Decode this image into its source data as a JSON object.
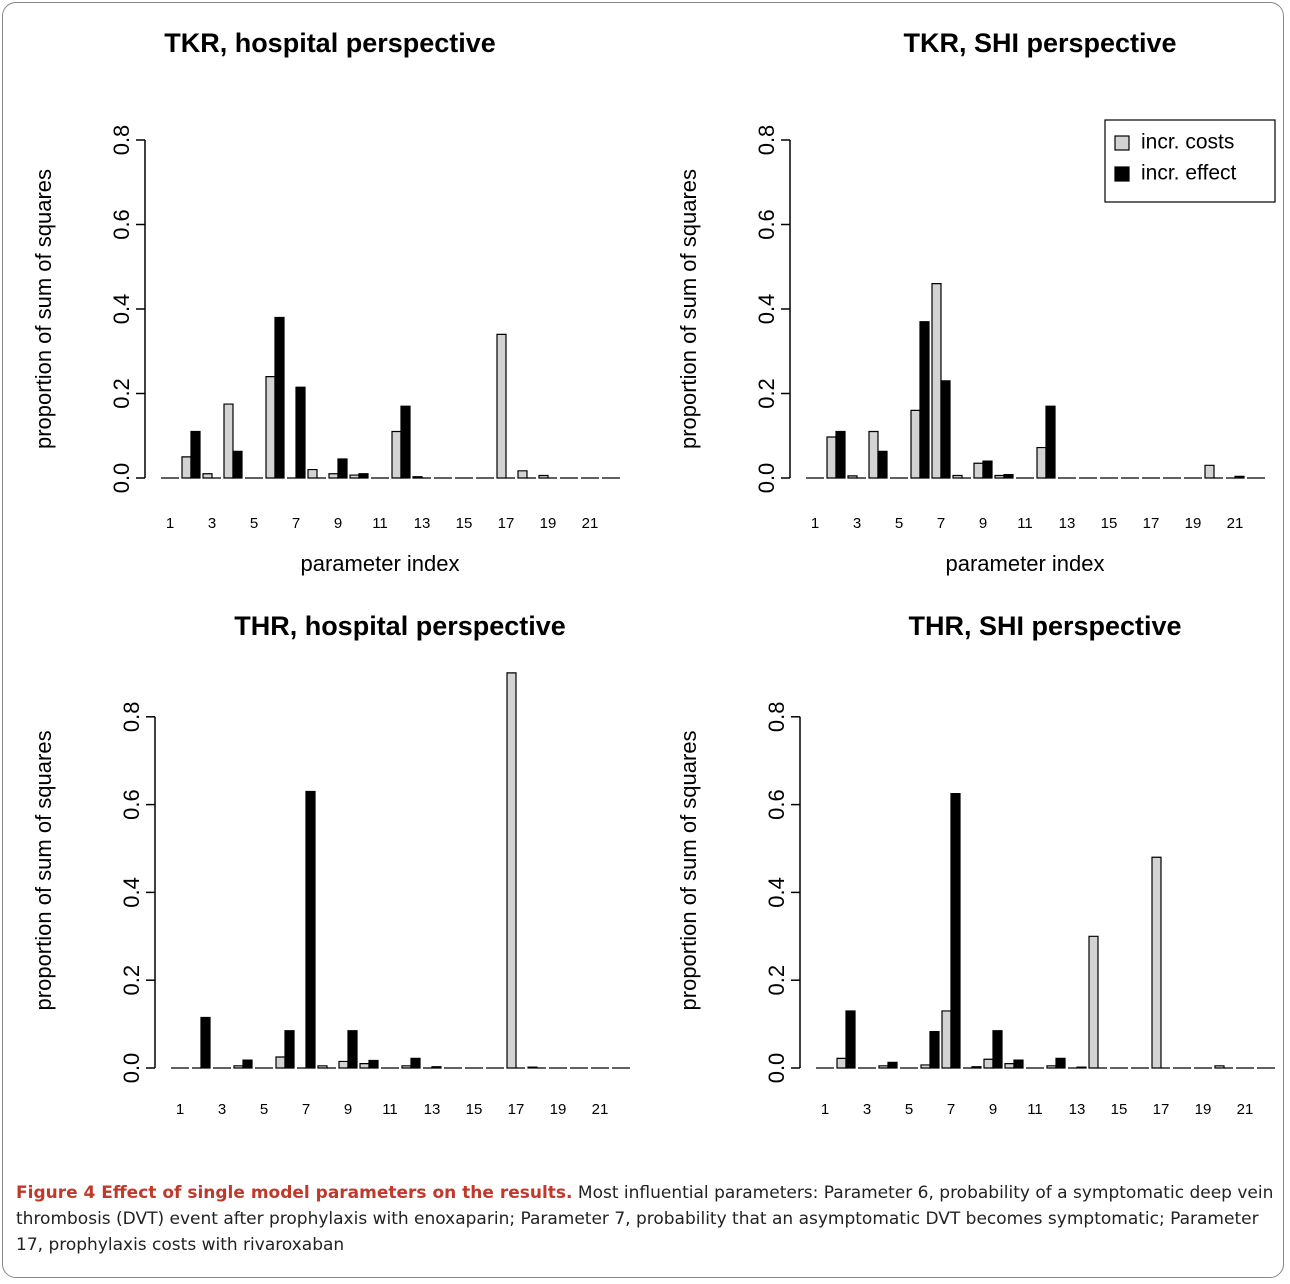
{
  "chart_data": [
    {
      "type": "bar",
      "title": "TKR, hospital perspective",
      "xlabel": "parameter index",
      "ylabel": "proportion of sum of squares",
      "categories": [
        1,
        null,
        3,
        null,
        5,
        null,
        7,
        null,
        9,
        null,
        11,
        null,
        13,
        null,
        15,
        null,
        17,
        null,
        19,
        null,
        21,
        null
      ],
      "series": [
        {
          "color": "#d3d3d3",
          "values": [
            0,
            0.05,
            0.01,
            0.175,
            0,
            0.24,
            0,
            0.02,
            0.01,
            0.007,
            0,
            0.11,
            0.003,
            0,
            0,
            0,
            0.34,
            0.017,
            0.006,
            0,
            0,
            0
          ]
        },
        {
          "color": "#000000",
          "values": [
            0,
            0.11,
            0,
            0.063,
            0,
            0.38,
            0.215,
            0,
            0.045,
            0.01,
            0,
            0.17,
            0,
            0,
            0,
            0,
            0,
            0,
            0,
            0,
            0,
            0
          ]
        }
      ],
      "ylim": [
        0,
        0.8
      ],
      "yticks": [
        {
          "value": 0,
          "label": "0.0"
        },
        0.2,
        0.4,
        0.6,
        0.8
      ]
    },
    {
      "type": "bar",
      "title": "TKR, SHI perspective",
      "xlabel": "parameter index",
      "ylabel": "proportion of sum of squares",
      "categories": [
        1,
        null,
        3,
        null,
        5,
        null,
        7,
        null,
        9,
        null,
        11,
        null,
        13,
        null,
        15,
        null,
        17,
        null,
        19,
        null,
        21,
        null
      ],
      "series": [
        {
          "name": "incr. costs",
          "color": "#d3d3d3",
          "values": [
            0,
            0.097,
            0.005,
            0.11,
            0,
            0.16,
            0.46,
            0.006,
            0.035,
            0.006,
            0,
            0.072,
            0,
            0,
            0,
            0,
            0,
            0,
            0,
            0.03,
            0,
            0
          ]
        },
        {
          "name": "incr. effect",
          "color": "#000000",
          "values": [
            0,
            0.11,
            0,
            0.063,
            0,
            0.37,
            0.23,
            0,
            0.04,
            0.008,
            0,
            0.17,
            0,
            0,
            0,
            0,
            0,
            0,
            0,
            0,
            0.004,
            0
          ]
        }
      ],
      "legend": "topright",
      "ylim": [
        0,
        0.8
      ],
      "yticks": [
        {
          "value": 0,
          "label": "0.0"
        },
        0.2,
        0.4,
        0.6,
        0.8
      ]
    },
    {
      "type": "bar",
      "title": "THR, hospital perspective",
      "xlabel": "parameter index",
      "ylabel": "proportion of sum of squares",
      "categories": [
        1,
        null,
        3,
        null,
        5,
        null,
        7,
        null,
        9,
        null,
        11,
        null,
        13,
        null,
        15,
        null,
        17,
        null,
        19,
        null,
        21,
        null
      ],
      "series": [
        {
          "color": "#d3d3d3",
          "values": [
            0,
            0,
            0,
            0.005,
            0,
            0.025,
            0,
            0.005,
            0.015,
            0.01,
            0,
            0.005,
            0,
            0,
            0,
            0,
            0.9,
            0.002,
            0,
            0,
            0,
            0
          ]
        },
        {
          "color": "#000000",
          "values": [
            0,
            0.115,
            0,
            0.018,
            0,
            0.085,
            0.63,
            0,
            0.085,
            0.017,
            0,
            0.022,
            0.003,
            0,
            0,
            0,
            0,
            0,
            0,
            0,
            0,
            0
          ]
        }
      ],
      "ylim": [
        0,
        0.9
      ],
      "yticks": [
        {
          "value": 0,
          "label": "0.0"
        },
        0.2,
        0.4,
        0.6,
        0.8
      ]
    },
    {
      "type": "bar",
      "title": "THR, SHI perspective",
      "xlabel": "parameter index",
      "ylabel": "proportion of sum of squares",
      "categories": [
        1,
        null,
        3,
        null,
        5,
        null,
        7,
        null,
        9,
        null,
        11,
        null,
        13,
        null,
        15,
        null,
        17,
        null,
        19,
        null,
        21,
        null
      ],
      "series": [
        {
          "color": "#d3d3d3",
          "values": [
            0,
            0.022,
            0,
            0.005,
            0,
            0.007,
            0.13,
            0,
            0.02,
            0.01,
            0,
            0.005,
            0,
            0.3,
            0,
            0,
            0.48,
            0,
            0,
            0.005,
            0,
            0
          ]
        },
        {
          "color": "#000000",
          "values": [
            0,
            0.13,
            0,
            0.013,
            0,
            0.083,
            0.625,
            0.003,
            0.085,
            0.018,
            0,
            0.022,
            0.002,
            0,
            0,
            0,
            0,
            0,
            0,
            0,
            0,
            0
          ]
        }
      ],
      "ylim": [
        0,
        0.9
      ],
      "yticks": [
        {
          "value": 0,
          "label": "0.0"
        },
        0.2,
        0.4,
        0.6,
        0.8
      ]
    }
  ],
  "caption": {
    "label": "Figure 4 Effect of single model parameters on the results.",
    "text": "Most influential parameters: Parameter 6, probability of a symptomatic deep vein thrombosis (DVT) event after prophylaxis with enoxaparin; Parameter 7, probability that an asymptomatic DVT becomes symptomatic; Parameter 17, prophylaxis costs with rivaroxaban"
  }
}
